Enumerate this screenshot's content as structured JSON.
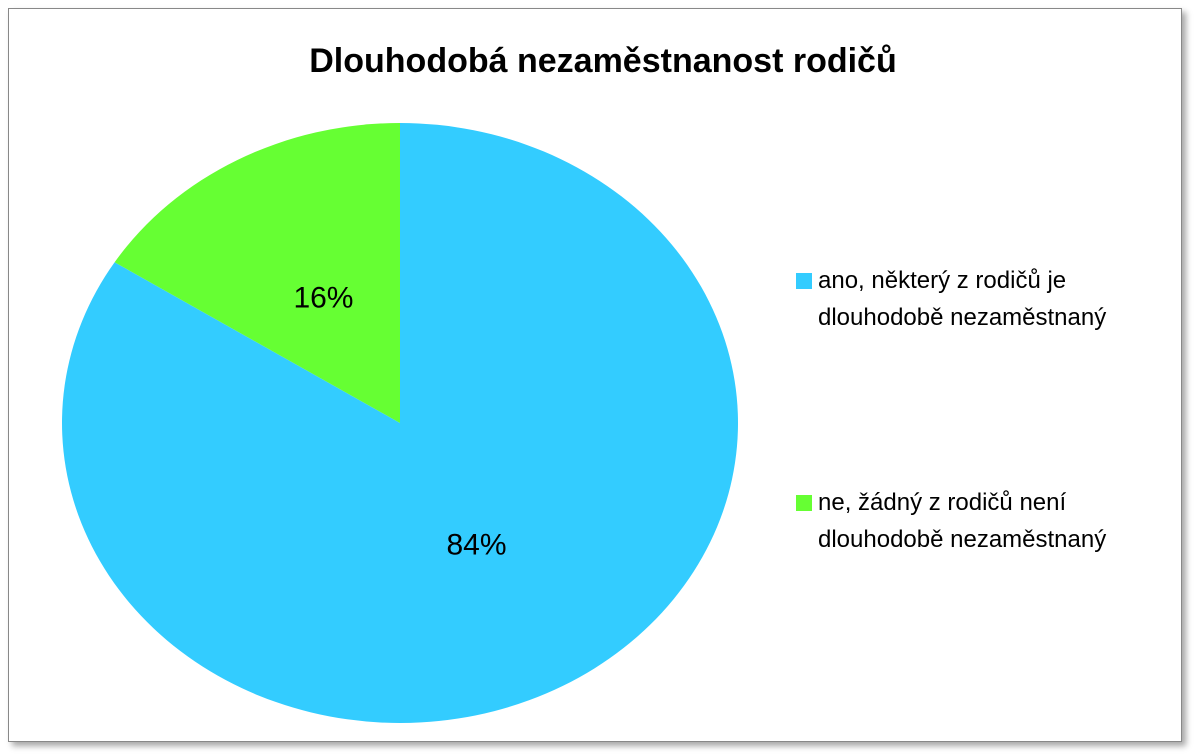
{
  "chart_data": {
    "type": "pie",
    "title": "Dlouhodobá nezaměstnanost rodičů",
    "categories": [
      "ano, některý z rodičů je dlouhodobě nezaměstnaný",
      "ne, žádný z rodičů není dlouhodobě nezaměstnaný"
    ],
    "values": [
      84,
      16
    ],
    "value_labels": [
      "84%",
      "16%"
    ],
    "colors": [
      "#33ccff",
      "#66ff33"
    ],
    "legend": "right"
  }
}
